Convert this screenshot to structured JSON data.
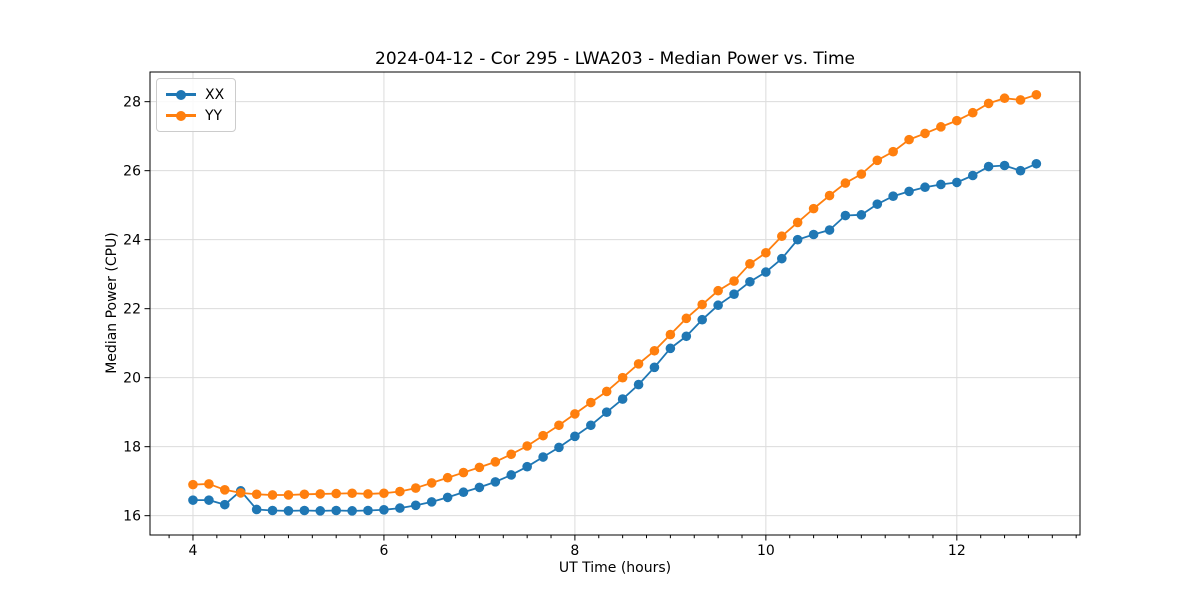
{
  "chart_data": {
    "type": "line",
    "title": "2024-04-12 - Cor 295 - LWA203 - Median Power vs. Time",
    "xlabel": "UT Time (hours)",
    "ylabel": "Median Power (CPU)",
    "x": [
      4.0,
      4.167,
      4.333,
      4.5,
      4.667,
      4.833,
      5.0,
      5.167,
      5.333,
      5.5,
      5.667,
      5.833,
      6.0,
      6.167,
      6.333,
      6.5,
      6.667,
      6.833,
      7.0,
      7.167,
      7.333,
      7.5,
      7.667,
      7.833,
      8.0,
      8.167,
      8.333,
      8.5,
      8.667,
      8.833,
      9.0,
      9.167,
      9.333,
      9.5,
      9.667,
      9.833,
      10.0,
      10.167,
      10.333,
      10.5,
      10.667,
      10.833,
      11.0,
      11.167,
      11.333,
      11.5,
      11.667,
      11.833,
      12.0,
      12.167,
      12.333,
      12.5,
      12.667,
      12.833
    ],
    "series": [
      {
        "name": "XX",
        "color": "#1f77b4",
        "marker": "circle",
        "values": [
          16.45,
          16.45,
          16.32,
          16.72,
          16.18,
          16.15,
          16.14,
          16.15,
          16.14,
          16.15,
          16.14,
          16.15,
          16.17,
          16.22,
          16.3,
          16.4,
          16.53,
          16.68,
          16.82,
          16.98,
          17.18,
          17.42,
          17.7,
          17.98,
          18.3,
          18.62,
          19.0,
          19.38,
          19.8,
          20.3,
          20.85,
          21.2,
          21.68,
          22.1,
          22.42,
          22.78,
          23.06,
          23.45,
          24.0,
          24.15,
          24.28,
          24.7,
          24.72,
          25.03,
          25.26,
          25.4,
          25.52,
          25.6,
          25.66,
          25.86,
          26.12,
          26.15,
          26.0,
          26.2
        ]
      },
      {
        "name": "YY",
        "color": "#ff7f0e",
        "marker": "circle",
        "values": [
          16.9,
          16.92,
          16.75,
          16.66,
          16.62,
          16.6,
          16.6,
          16.62,
          16.63,
          16.64,
          16.65,
          16.63,
          16.65,
          16.7,
          16.8,
          16.95,
          17.1,
          17.25,
          17.4,
          17.56,
          17.78,
          18.02,
          18.32,
          18.62,
          18.95,
          19.28,
          19.6,
          20.0,
          20.4,
          20.78,
          21.25,
          21.72,
          22.12,
          22.52,
          22.8,
          23.3,
          23.62,
          24.1,
          24.5,
          24.9,
          25.28,
          25.64,
          25.9,
          26.3,
          26.55,
          26.9,
          27.08,
          27.27,
          27.45,
          27.68,
          27.95,
          28.1,
          28.05,
          28.2
        ]
      }
    ],
    "xlim": [
      3.55,
      13.29
    ],
    "ylim": [
      15.44,
      28.86
    ],
    "x_ticks": [
      4,
      6,
      8,
      10,
      12
    ],
    "x_tick_labels": [
      "4",
      "6",
      "8",
      "10",
      "12"
    ],
    "y_ticks": [
      16,
      18,
      20,
      22,
      24,
      26,
      28
    ],
    "y_tick_labels": [
      "16",
      "18",
      "20",
      "22",
      "24",
      "26",
      "28"
    ],
    "x_minor_tick_step": 0.25,
    "grid": true,
    "grid_color": "#dcdcdc",
    "axis_color": "#000000",
    "legend": {
      "position": "upper-left",
      "entries": [
        "XX",
        "YY"
      ]
    }
  }
}
